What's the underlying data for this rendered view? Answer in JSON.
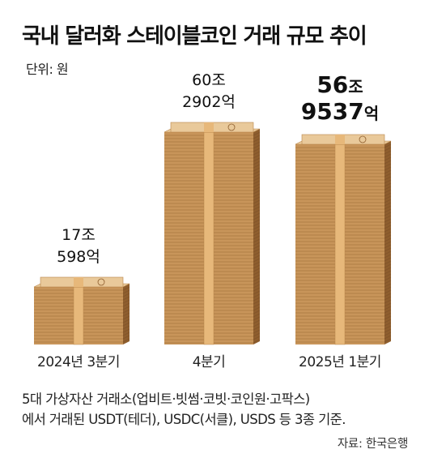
{
  "title": "국내 달러화 스테이블코인 거래 규모 추이",
  "unit_label": "단위: 원",
  "chart_data": {
    "type": "bar",
    "title": "국내 달러화 스테이블코인 거래 규모 추이",
    "unit": "원",
    "categories": [
      "2024년 3분기",
      "4분기",
      "2025년 1분기"
    ],
    "values": [
      17059800000000,
      60290200000000,
      56953700000000
    ],
    "value_labels": [
      {
        "line1": "17조",
        "line2": "598억"
      },
      {
        "line1": "60조",
        "line2": "2902억"
      },
      {
        "line1_num": "56",
        "line1_unit": "조",
        "line2_num": "9537",
        "line2_unit": "억"
      }
    ],
    "highlight_index": 2,
    "ylim": [
      0,
      60290200000000
    ],
    "bar_style": "stacked-banknotes"
  },
  "colors": {
    "note_edge": "#C8955A",
    "note_shadow": "#8E5E2E",
    "note_face": "#E9C99A",
    "band": "#E7B87A",
    "text": "#1a1a1a"
  },
  "footnote": {
    "line1": "5대 가상자산 거래소(업비트·빗썸·코빗·코인원·고팍스)",
    "line2": "에서 거래된 USDT(테더), USDC(서클), USDS 등 3종 기준."
  },
  "source": "자료: 한국은행"
}
